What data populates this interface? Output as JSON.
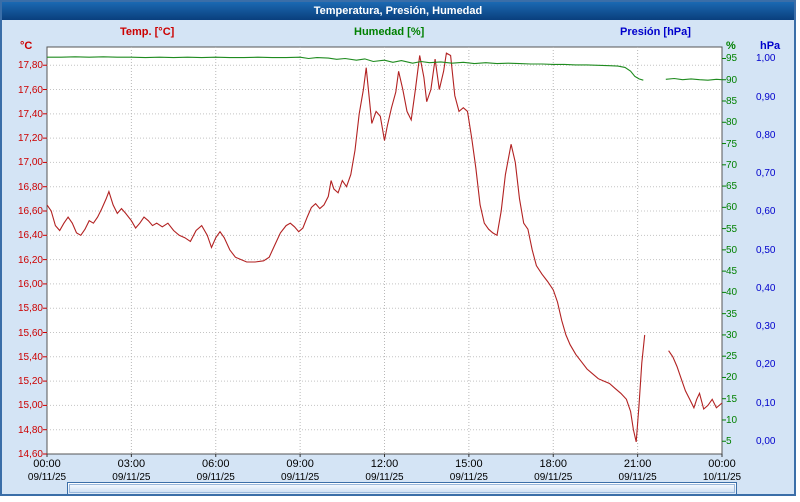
{
  "window": {
    "title": "Temperatura, Presión, Humedad"
  },
  "legend": {
    "temp": "Temp. [°C]",
    "humidity": "Humedad [%]",
    "pressure": "Presión [hPa]"
  },
  "axis_units": {
    "temp": "°C",
    "humidity": "%",
    "pressure": "hPa"
  },
  "chart_data": {
    "type": "line",
    "title": "Temperatura, Presión, Humedad",
    "x_unit": "hours",
    "x_range": [
      0,
      24
    ],
    "grid": true,
    "x_ticks": [
      {
        "hour": 0,
        "time": "00:00",
        "date": "09/11/25"
      },
      {
        "hour": 3,
        "time": "03:00",
        "date": "09/11/25"
      },
      {
        "hour": 6,
        "time": "06:00",
        "date": "09/11/25"
      },
      {
        "hour": 9,
        "time": "09:00",
        "date": "09/11/25"
      },
      {
        "hour": 12,
        "time": "12:00",
        "date": "09/11/25"
      },
      {
        "hour": 15,
        "time": "15:00",
        "date": "09/11/25"
      },
      {
        "hour": 18,
        "time": "18:00",
        "date": "09/11/25"
      },
      {
        "hour": 21,
        "time": "21:00",
        "date": "09/11/25"
      },
      {
        "hour": 24,
        "time": "00:00",
        "date": "10/11/25"
      }
    ],
    "axes": {
      "temp": {
        "color": "#cc0000",
        "range": [
          14.6,
          17.95
        ],
        "decimals": 2,
        "ticks": [
          17.8,
          17.6,
          17.4,
          17.2,
          17.0,
          16.8,
          16.6,
          16.4,
          16.2,
          16.0,
          15.8,
          15.6,
          15.4,
          15.2,
          15.0,
          14.8,
          14.6
        ]
      },
      "humidity": {
        "color": "#008000",
        "range": [
          2.0,
          97.7
        ],
        "decimals": 0,
        "ticks": [
          95,
          90,
          85,
          80,
          75,
          70,
          65,
          60,
          55,
          50,
          45,
          40,
          35,
          30,
          25,
          20,
          15,
          10,
          5
        ]
      },
      "pressure": {
        "color": "#0000cc",
        "range": [
          -0.034,
          1.03
        ],
        "decimals": 2,
        "ticks": [
          1.0,
          0.9,
          0.8,
          0.7,
          0.6,
          0.5,
          0.4,
          0.3,
          0.2,
          0.1,
          0.0
        ]
      }
    },
    "series": [
      {
        "name": "Temp. [°C]",
        "color": "#b22222",
        "axis": "temp",
        "points": [
          [
            0.0,
            16.65
          ],
          [
            0.15,
            16.6
          ],
          [
            0.3,
            16.48
          ],
          [
            0.45,
            16.44
          ],
          [
            0.6,
            16.5
          ],
          [
            0.75,
            16.55
          ],
          [
            0.9,
            16.5
          ],
          [
            1.05,
            16.42
          ],
          [
            1.2,
            16.4
          ],
          [
            1.35,
            16.45
          ],
          [
            1.5,
            16.52
          ],
          [
            1.65,
            16.5
          ],
          [
            1.8,
            16.55
          ],
          [
            1.95,
            16.62
          ],
          [
            2.1,
            16.7
          ],
          [
            2.2,
            16.76
          ],
          [
            2.35,
            16.65
          ],
          [
            2.5,
            16.58
          ],
          [
            2.65,
            16.62
          ],
          [
            2.8,
            16.58
          ],
          [
            3.0,
            16.52
          ],
          [
            3.15,
            16.46
          ],
          [
            3.3,
            16.5
          ],
          [
            3.45,
            16.55
          ],
          [
            3.6,
            16.52
          ],
          [
            3.75,
            16.48
          ],
          [
            3.9,
            16.5
          ],
          [
            4.1,
            16.47
          ],
          [
            4.3,
            16.5
          ],
          [
            4.5,
            16.44
          ],
          [
            4.7,
            16.4
          ],
          [
            4.9,
            16.38
          ],
          [
            5.1,
            16.35
          ],
          [
            5.3,
            16.44
          ],
          [
            5.5,
            16.48
          ],
          [
            5.7,
            16.4
          ],
          [
            5.85,
            16.3
          ],
          [
            6.0,
            16.38
          ],
          [
            6.15,
            16.43
          ],
          [
            6.3,
            16.38
          ],
          [
            6.5,
            16.28
          ],
          [
            6.7,
            16.22
          ],
          [
            6.9,
            16.2
          ],
          [
            7.1,
            16.18
          ],
          [
            7.4,
            16.18
          ],
          [
            7.7,
            16.19
          ],
          [
            7.9,
            16.22
          ],
          [
            8.1,
            16.32
          ],
          [
            8.3,
            16.42
          ],
          [
            8.5,
            16.48
          ],
          [
            8.65,
            16.5
          ],
          [
            8.8,
            16.47
          ],
          [
            8.95,
            16.43
          ],
          [
            9.1,
            16.46
          ],
          [
            9.25,
            16.55
          ],
          [
            9.4,
            16.63
          ],
          [
            9.55,
            16.66
          ],
          [
            9.7,
            16.62
          ],
          [
            9.85,
            16.65
          ],
          [
            10.0,
            16.72
          ],
          [
            10.1,
            16.85
          ],
          [
            10.2,
            16.78
          ],
          [
            10.35,
            16.75
          ],
          [
            10.5,
            16.85
          ],
          [
            10.65,
            16.8
          ],
          [
            10.8,
            16.9
          ],
          [
            10.95,
            17.1
          ],
          [
            11.1,
            17.4
          ],
          [
            11.25,
            17.6
          ],
          [
            11.35,
            17.78
          ],
          [
            11.45,
            17.55
          ],
          [
            11.55,
            17.32
          ],
          [
            11.7,
            17.42
          ],
          [
            11.85,
            17.38
          ],
          [
            12.0,
            17.18
          ],
          [
            12.1,
            17.3
          ],
          [
            12.25,
            17.45
          ],
          [
            12.4,
            17.58
          ],
          [
            12.5,
            17.75
          ],
          [
            12.65,
            17.6
          ],
          [
            12.8,
            17.42
          ],
          [
            12.95,
            17.35
          ],
          [
            13.1,
            17.6
          ],
          [
            13.25,
            17.88
          ],
          [
            13.4,
            17.7
          ],
          [
            13.5,
            17.5
          ],
          [
            13.65,
            17.6
          ],
          [
            13.8,
            17.85
          ],
          [
            13.95,
            17.6
          ],
          [
            14.1,
            17.75
          ],
          [
            14.2,
            17.9
          ],
          [
            14.35,
            17.88
          ],
          [
            14.5,
            17.55
          ],
          [
            14.65,
            17.42
          ],
          [
            14.8,
            17.45
          ],
          [
            14.95,
            17.42
          ],
          [
            15.1,
            17.2
          ],
          [
            15.25,
            16.95
          ],
          [
            15.4,
            16.65
          ],
          [
            15.55,
            16.5
          ],
          [
            15.7,
            16.45
          ],
          [
            15.85,
            16.42
          ],
          [
            16.0,
            16.4
          ],
          [
            16.15,
            16.6
          ],
          [
            16.3,
            16.9
          ],
          [
            16.5,
            17.15
          ],
          [
            16.65,
            17.0
          ],
          [
            16.8,
            16.7
          ],
          [
            16.95,
            16.5
          ],
          [
            17.1,
            16.45
          ],
          [
            17.25,
            16.28
          ],
          [
            17.4,
            16.15
          ],
          [
            17.6,
            16.08
          ],
          [
            17.8,
            16.02
          ],
          [
            18.0,
            15.95
          ],
          [
            18.15,
            15.85
          ],
          [
            18.3,
            15.7
          ],
          [
            18.45,
            15.58
          ],
          [
            18.6,
            15.5
          ],
          [
            18.8,
            15.42
          ],
          [
            19.0,
            15.36
          ],
          [
            19.2,
            15.3
          ],
          [
            19.4,
            15.26
          ],
          [
            19.6,
            15.22
          ],
          [
            19.8,
            15.2
          ],
          [
            20.0,
            15.18
          ],
          [
            20.2,
            15.14
          ],
          [
            20.4,
            15.1
          ],
          [
            20.6,
            15.05
          ],
          [
            20.75,
            14.95
          ],
          [
            20.85,
            14.8
          ],
          [
            20.95,
            14.7
          ],
          [
            21.05,
            15.0
          ],
          [
            21.15,
            15.35
          ],
          [
            21.25,
            15.58
          ],
          [
            21.35,
            null
          ],
          [
            22.1,
            15.45
          ],
          [
            22.25,
            15.4
          ],
          [
            22.4,
            15.32
          ],
          [
            22.55,
            15.22
          ],
          [
            22.7,
            15.12
          ],
          [
            22.85,
            15.05
          ],
          [
            23.0,
            14.98
          ],
          [
            23.1,
            15.05
          ],
          [
            23.2,
            15.1
          ],
          [
            23.35,
            14.97
          ],
          [
            23.5,
            15.0
          ],
          [
            23.65,
            15.05
          ],
          [
            23.8,
            14.98
          ],
          [
            24.0,
            15.02
          ]
        ]
      },
      {
        "name": "Humedad [%]",
        "color": "#1f8b1f",
        "axis": "humidity",
        "points": [
          [
            0,
            95.3
          ],
          [
            0.5,
            95.3
          ],
          [
            1,
            95.4
          ],
          [
            1.5,
            95.3
          ],
          [
            2,
            95.4
          ],
          [
            2.5,
            95.3
          ],
          [
            3,
            95.3
          ],
          [
            3.5,
            95.2
          ],
          [
            4,
            95.3
          ],
          [
            4.5,
            95.2
          ],
          [
            5,
            95.3
          ],
          [
            5.5,
            95.2
          ],
          [
            6,
            95.3
          ],
          [
            6.5,
            95.2
          ],
          [
            7,
            95.2
          ],
          [
            7.5,
            95.3
          ],
          [
            8,
            95.2
          ],
          [
            8.5,
            95.2
          ],
          [
            9,
            95.3
          ],
          [
            9.3,
            95.0
          ],
          [
            9.6,
            95.2
          ],
          [
            10,
            95.1
          ],
          [
            10.3,
            94.8
          ],
          [
            10.6,
            95.0
          ],
          [
            11,
            94.6
          ],
          [
            11.3,
            94.9
          ],
          [
            11.6,
            94.3
          ],
          [
            12,
            94.6
          ],
          [
            12.3,
            94.1
          ],
          [
            12.6,
            94.5
          ],
          [
            13,
            93.9
          ],
          [
            13.3,
            94.3
          ],
          [
            13.6,
            94.0
          ],
          [
            14,
            94.2
          ],
          [
            14.4,
            93.9
          ],
          [
            14.8,
            94.1
          ],
          [
            15.2,
            93.8
          ],
          [
            15.6,
            94.0
          ],
          [
            16,
            93.8
          ],
          [
            16.4,
            93.9
          ],
          [
            16.8,
            93.8
          ],
          [
            17.2,
            93.7
          ],
          [
            17.6,
            93.7
          ],
          [
            18,
            93.6
          ],
          [
            18.4,
            93.6
          ],
          [
            18.8,
            93.5
          ],
          [
            19.2,
            93.5
          ],
          [
            19.6,
            93.4
          ],
          [
            20,
            93.3
          ],
          [
            20.3,
            93.2
          ],
          [
            20.55,
            92.9
          ],
          [
            20.75,
            92.0
          ],
          [
            20.9,
            90.8
          ],
          [
            21.05,
            90.2
          ],
          [
            21.2,
            89.9
          ],
          [
            21.35,
            null
          ],
          [
            22.0,
            90.1
          ],
          [
            22.3,
            90.3
          ],
          [
            22.6,
            90.0
          ],
          [
            22.9,
            90.2
          ],
          [
            23.2,
            90.0
          ],
          [
            23.5,
            89.9
          ],
          [
            23.8,
            90.1
          ],
          [
            24,
            90.0
          ]
        ]
      },
      {
        "name": "Presión [hPa]",
        "color": "#0000cc",
        "axis": "pressure",
        "points": []
      }
    ]
  }
}
